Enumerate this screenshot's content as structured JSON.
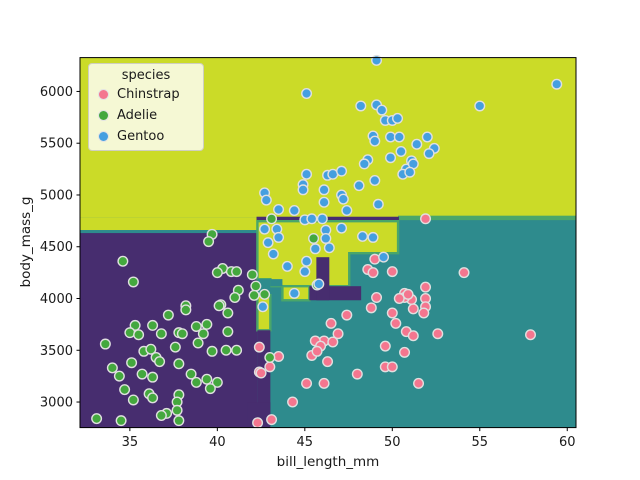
{
  "chart_data": {
    "type": "scatter",
    "title": "",
    "xlabel": "bill_length_mm",
    "ylabel": "body_mass_g",
    "xlim": [
      32.15,
      60.5
    ],
    "ylim": [
      2753,
      6327
    ],
    "xticks": [
      35,
      40,
      45,
      50,
      55,
      60
    ],
    "yticks": [
      3000,
      3500,
      4000,
      4500,
      5000,
      5500,
      6000
    ],
    "grid": false,
    "legend": {
      "title": "species",
      "position": "upper left",
      "items": [
        {
          "label": "Chinstrap",
          "color": "#f4768f"
        },
        {
          "label": "Adelie",
          "color": "#44a83e"
        },
        {
          "label": "Gentoo",
          "color": "#459fe0"
        }
      ]
    },
    "region_colors": {
      "purple": "#472d6f",
      "teal": "#2e8b8d",
      "yellow": "#cbdb28",
      "fringe": "#4aa66a"
    },
    "decision_regions": [
      {
        "shape": "rect",
        "class": "teal",
        "x": [
          32.15,
          60.5
        ],
        "y": [
          2753,
          6327
        ]
      },
      {
        "shape": "rect",
        "class": "yellow",
        "x": [
          32.15,
          60.5
        ],
        "y": [
          4786,
          6327
        ]
      },
      {
        "shape": "rect",
        "class": "fringe",
        "x": [
          50.33,
          60.5
        ],
        "y": [
          4757,
          4800
        ]
      },
      {
        "shape": "rect",
        "class": "yellow",
        "x": [
          32.15,
          42.29
        ],
        "y": [
          4661,
          4786
        ]
      },
      {
        "shape": "rect",
        "class": "teal",
        "x": [
          32.15,
          42.29
        ],
        "y": [
          4632,
          4661
        ]
      },
      {
        "shape": "rect",
        "class": "purple",
        "x": [
          32.15,
          42.29
        ],
        "y": [
          2753,
          4632
        ]
      },
      {
        "shape": "rect",
        "class": "purple",
        "x": [
          42.24,
          50.38
        ],
        "y": [
          4743,
          4790
        ]
      },
      {
        "shape": "poly",
        "class": "yellow",
        "stroke": true,
        "pts": [
          [
            42.29,
            4747
          ],
          [
            50.33,
            4747
          ],
          [
            50.33,
            4438
          ],
          [
            47.54,
            4438
          ],
          [
            47.54,
            4119
          ],
          [
            43.03,
            4119
          ],
          [
            43.03,
            4187
          ],
          [
            42.29,
            4187
          ]
        ]
      },
      {
        "shape": "rect",
        "class": "yellow",
        "stroke": true,
        "x": [
          43.72,
          45.26
        ],
        "y": [
          3983,
          4119
        ]
      },
      {
        "shape": "rect",
        "class": "purple",
        "x": [
          45.26,
          48.22
        ],
        "y": [
          3983,
          4119
        ]
      },
      {
        "shape": "rect",
        "class": "purple",
        "x": [
          45.66,
          46.4
        ],
        "y": [
          3983,
          4399
        ]
      },
      {
        "shape": "rect",
        "class": "teal",
        "x": [
          43.03,
          43.72
        ],
        "y": [
          4119,
          4187
        ]
      },
      {
        "shape": "rect",
        "class": "teal",
        "x": [
          42.29,
          43.03
        ],
        "y": [
          4032,
          4187
        ]
      },
      {
        "shape": "rect",
        "class": "yellow",
        "stroke": true,
        "x": [
          42.29,
          43.03
        ],
        "y": [
          3693,
          4032
        ]
      },
      {
        "shape": "rect",
        "class": "purple",
        "x": [
          42.29,
          43.03
        ],
        "y": [
          2804,
          3693
        ]
      },
      {
        "shape": "rect",
        "class": "purple",
        "x": [
          41.72,
          43.03
        ],
        "y": [
          2753,
          2997
        ]
      }
    ],
    "series": [
      {
        "name": "Chinstrap",
        "color": "#f4768f",
        "points": [
          [
            51.9,
            4770
          ],
          [
            54.1,
            4250
          ],
          [
            51.9,
            4110
          ],
          [
            51.9,
            4000
          ],
          [
            51.9,
            3920
          ],
          [
            51.8,
            3860
          ],
          [
            52.6,
            3660
          ],
          [
            57.9,
            3650
          ],
          [
            51.5,
            3180
          ],
          [
            49.1,
            4010
          ],
          [
            50.7,
            4050
          ],
          [
            51.1,
            3990
          ],
          [
            48.8,
            3910
          ],
          [
            47.4,
            3840
          ],
          [
            50.0,
            3860
          ],
          [
            50.2,
            3760
          ],
          [
            50.8,
            3680
          ],
          [
            51.2,
            3640
          ],
          [
            46.5,
            3760
          ],
          [
            46.9,
            3660
          ],
          [
            46.1,
            3590
          ],
          [
            45.6,
            3590
          ],
          [
            45.9,
            3540
          ],
          [
            46.6,
            3580
          ],
          [
            45.4,
            3450
          ],
          [
            45.7,
            3490
          ],
          [
            46.3,
            3390
          ],
          [
            49.6,
            3540
          ],
          [
            50.7,
            3480
          ],
          [
            49.6,
            3340
          ],
          [
            50.0,
            3340
          ],
          [
            48.0,
            3270
          ],
          [
            45.1,
            3180
          ],
          [
            46.1,
            3180
          ],
          [
            42.4,
            3290
          ],
          [
            43.1,
            2830
          ],
          [
            42.5,
            3280
          ],
          [
            42.4,
            3530
          ],
          [
            43.0,
            3340
          ],
          [
            43.5,
            3440
          ],
          [
            49.0,
            4380
          ],
          [
            50.0,
            4260
          ],
          [
            48.6,
            4280
          ],
          [
            48.9,
            4250
          ],
          [
            50.7,
            4010
          ],
          [
            50.4,
            4000
          ],
          [
            50.9,
            4040
          ],
          [
            51.2,
            3900
          ],
          [
            42.3,
            2800
          ],
          [
            44.3,
            3000
          ]
        ]
      },
      {
        "name": "Adelie",
        "color": "#44a83e",
        "points": [
          [
            34.6,
            4360
          ],
          [
            35.2,
            4160
          ],
          [
            39.7,
            4620
          ],
          [
            39.5,
            4550
          ],
          [
            40.3,
            4290
          ],
          [
            40.0,
            4250
          ],
          [
            40.8,
            4260
          ],
          [
            41.1,
            4260
          ],
          [
            41.2,
            4080
          ],
          [
            41.0,
            4010
          ],
          [
            38.2,
            3930
          ],
          [
            40.2,
            3940
          ],
          [
            37.2,
            3840
          ],
          [
            40.6,
            3860
          ],
          [
            40.1,
            3930
          ],
          [
            38.2,
            3890
          ],
          [
            35.3,
            3740
          ],
          [
            36.3,
            3740
          ],
          [
            36.8,
            3660
          ],
          [
            35.0,
            3670
          ],
          [
            35.5,
            3650
          ],
          [
            37.8,
            3670
          ],
          [
            38.0,
            3660
          ],
          [
            38.8,
            3730
          ],
          [
            39.4,
            3750
          ],
          [
            39.2,
            3660
          ],
          [
            40.6,
            3680
          ],
          [
            33.6,
            3560
          ],
          [
            38.9,
            3570
          ],
          [
            37.6,
            3530
          ],
          [
            35.8,
            3490
          ],
          [
            36.2,
            3510
          ],
          [
            39.7,
            3490
          ],
          [
            40.5,
            3500
          ],
          [
            41.1,
            3500
          ],
          [
            36.5,
            3430
          ],
          [
            36.7,
            3390
          ],
          [
            35.1,
            3380
          ],
          [
            37.8,
            3370
          ],
          [
            34.0,
            3330
          ],
          [
            34.4,
            3250
          ],
          [
            35.7,
            3270
          ],
          [
            36.3,
            3240
          ],
          [
            38.5,
            3270
          ],
          [
            38.8,
            3190
          ],
          [
            39.4,
            3220
          ],
          [
            40.0,
            3190
          ],
          [
            39.6,
            3130
          ],
          [
            34.7,
            3120
          ],
          [
            35.2,
            3020
          ],
          [
            36.1,
            3080
          ],
          [
            36.3,
            3040
          ],
          [
            37.8,
            3070
          ],
          [
            37.7,
            3000
          ],
          [
            37.7,
            2920
          ],
          [
            37.1,
            2890
          ],
          [
            36.8,
            2870
          ],
          [
            37.8,
            2820
          ],
          [
            33.1,
            2840
          ],
          [
            34.5,
            2820
          ],
          [
            43.1,
            4770
          ],
          [
            45.5,
            4580
          ],
          [
            42.0,
            4230
          ],
          [
            42.2,
            4120
          ],
          [
            42.7,
            4040
          ],
          [
            45.7,
            4130
          ],
          [
            43.0,
            3430
          ],
          [
            42.1,
            4030
          ]
        ]
      },
      {
        "name": "Gentoo",
        "color": "#459fe0",
        "points": [
          [
            49.1,
            6300
          ],
          [
            59.4,
            6070
          ],
          [
            45.1,
            5980
          ],
          [
            48.2,
            5860
          ],
          [
            49.1,
            5870
          ],
          [
            49.4,
            5820
          ],
          [
            49.6,
            5720
          ],
          [
            50.0,
            5720
          ],
          [
            50.3,
            5740
          ],
          [
            55.0,
            5860
          ],
          [
            48.9,
            5570
          ],
          [
            49.0,
            5520
          ],
          [
            49.9,
            5560
          ],
          [
            50.4,
            5560
          ],
          [
            50.5,
            5420
          ],
          [
            49.9,
            5360
          ],
          [
            48.6,
            5340
          ],
          [
            48.4,
            5300
          ],
          [
            51.1,
            5330
          ],
          [
            50.8,
            5250
          ],
          [
            50.6,
            5200
          ],
          [
            52.0,
            5560
          ],
          [
            51.4,
            5490
          ],
          [
            52.4,
            5450
          ],
          [
            52.1,
            5400
          ],
          [
            51.2,
            5300
          ],
          [
            51.0,
            5220
          ],
          [
            45.1,
            5200
          ],
          [
            46.3,
            5190
          ],
          [
            46.6,
            5200
          ],
          [
            47.1,
            5230
          ],
          [
            44.9,
            5100
          ],
          [
            44.9,
            5050
          ],
          [
            48.1,
            5090
          ],
          [
            49.0,
            5140
          ],
          [
            46.1,
            5050
          ],
          [
            42.7,
            5020
          ],
          [
            47.1,
            5000
          ],
          [
            42.8,
            4950
          ],
          [
            43.5,
            4860
          ],
          [
            44.4,
            4850
          ],
          [
            46.1,
            4930
          ],
          [
            47.2,
            4960
          ],
          [
            47.4,
            4850
          ],
          [
            49.2,
            4910
          ],
          [
            45.0,
            4760
          ],
          [
            45.4,
            4770
          ],
          [
            46.0,
            4770
          ],
          [
            42.7,
            4670
          ],
          [
            43.4,
            4670
          ],
          [
            43.5,
            4590
          ],
          [
            42.9,
            4540
          ],
          [
            47.1,
            4680
          ],
          [
            46.2,
            4660
          ],
          [
            46.2,
            4580
          ],
          [
            46.4,
            4490
          ],
          [
            45.6,
            4480
          ],
          [
            48.3,
            4600
          ],
          [
            48.9,
            4590
          ],
          [
            49.5,
            4400
          ],
          [
            43.2,
            4430
          ],
          [
            44.0,
            4310
          ],
          [
            45.1,
            4360
          ],
          [
            45.0,
            4260
          ],
          [
            45.8,
            4140
          ],
          [
            44.4,
            4050
          ],
          [
            42.6,
            3920
          ]
        ]
      }
    ]
  }
}
